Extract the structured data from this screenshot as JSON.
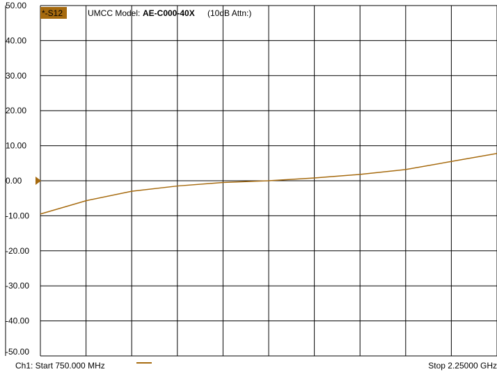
{
  "marker": {
    "label": "*-S12",
    "color": "#a66a0e"
  },
  "annotation": {
    "model_label": "UMCC Model:",
    "model_value": "AE-C000-40X",
    "attn": "(10dB Attn:)"
  },
  "footer": {
    "start": "Ch1: Start  750.000 MHz",
    "stop": "Stop  2.25000 GHz"
  },
  "chart_data": {
    "type": "line",
    "title": "",
    "xlabel": "",
    "ylabel": "",
    "xlim": [
      750,
      2250
    ],
    "x_unit": "MHz",
    "ylim": [
      -50,
      50
    ],
    "y_ticks": [
      "50.00",
      "40.00",
      "30.00",
      "20.00",
      "10.00",
      "0.00",
      "-10.00",
      "-20.00",
      "-30.00",
      "-40.00",
      "-50.00"
    ],
    "y_tick_values": [
      50,
      40,
      30,
      20,
      10,
      0,
      -10,
      -20,
      -30,
      -40,
      -50
    ],
    "x_divisions": 10,
    "grid": true,
    "reference_level": 0,
    "series": [
      {
        "color": "#a66a0e",
        "x": [
          750,
          900,
          1050,
          1200,
          1350,
          1500,
          1650,
          1800,
          1950,
          2100,
          2250
        ],
        "y": [
          -9.5,
          -5.7,
          -3,
          -1.5,
          -0.5,
          0,
          0.8,
          1.8,
          3.2,
          5.5,
          7.8
        ]
      }
    ]
  }
}
